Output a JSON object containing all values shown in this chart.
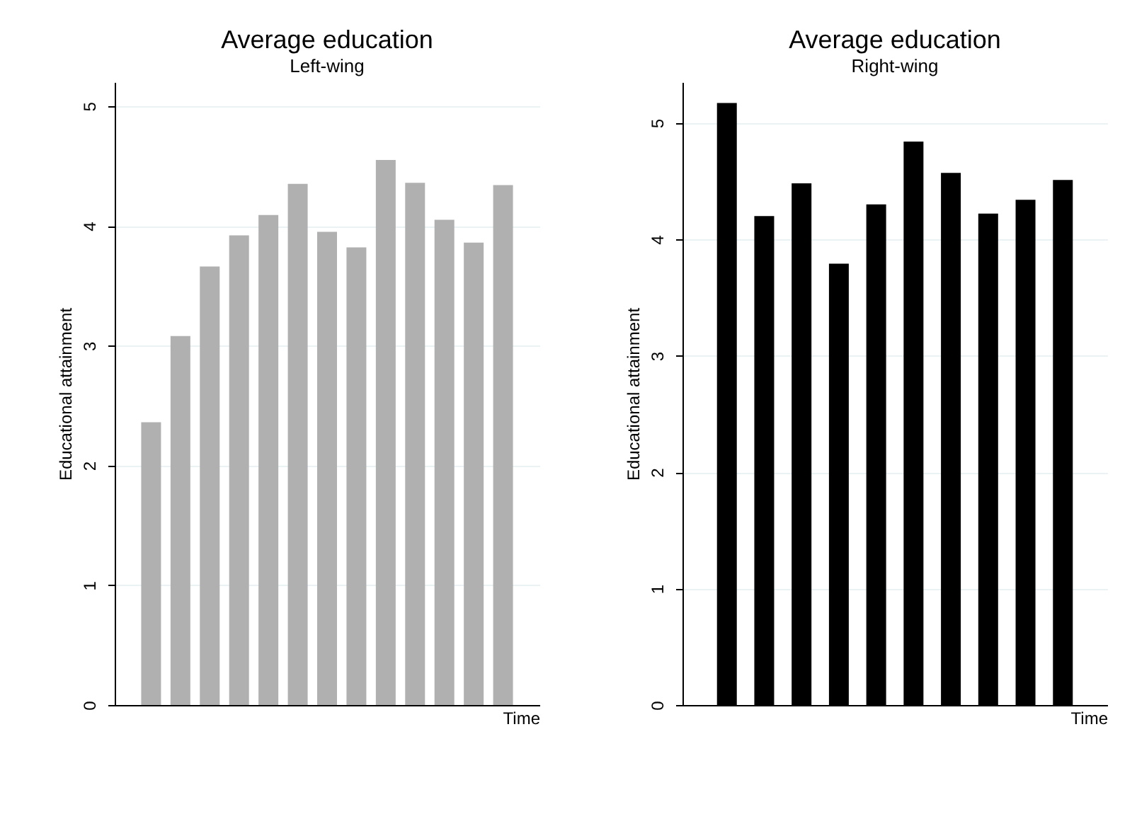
{
  "chart_data": [
    {
      "type": "bar",
      "title": "Average education",
      "subtitle": "Left-wing",
      "xlabel": "Time",
      "ylabel": "Educational attainment",
      "categories": [
        null,
        null,
        null,
        null,
        null,
        null,
        null,
        null,
        null,
        null,
        null,
        null,
        null
      ],
      "values": [
        2.36,
        3.08,
        3.66,
        3.92,
        4.09,
        4.35,
        3.95,
        3.82,
        4.55,
        4.36,
        4.05,
        3.86,
        4.34
      ],
      "color": "#b0b0b0",
      "ylim": [
        0,
        5.2
      ],
      "yticks": [
        0,
        1,
        2,
        3,
        4,
        5
      ],
      "grid": "y"
    },
    {
      "type": "bar",
      "title": "Average education",
      "subtitle": "Right-wing",
      "xlabel": "Time",
      "ylabel": "Educational attainment",
      "categories": [
        null,
        null,
        null,
        null,
        null,
        null,
        null,
        null,
        null,
        null
      ],
      "values": [
        5.17,
        4.2,
        4.48,
        3.79,
        4.3,
        4.84,
        4.57,
        4.22,
        4.34,
        4.51
      ],
      "color": "#000000",
      "ylim": [
        0,
        5.35
      ],
      "yticks": [
        0,
        1,
        2,
        3,
        4,
        5
      ],
      "grid": "y"
    }
  ]
}
